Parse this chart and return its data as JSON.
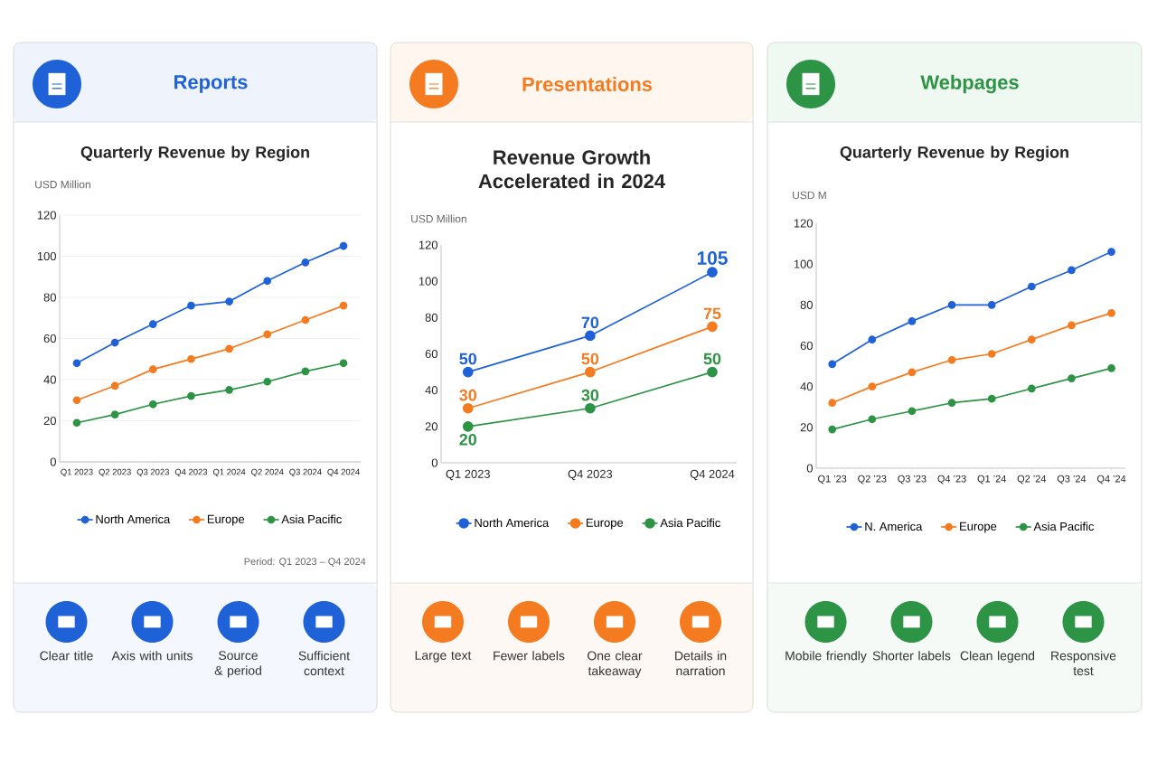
{
  "chart_data": [
    {
      "type": "line",
      "title": "Reports",
      "subtitle": "Quarterly Revenue by Region",
      "ylabel": "USD Million",
      "categories": [
        "Q1 2023",
        "Q2 2023",
        "Q3 2023",
        "Q4 2023",
        "Q1 2024",
        "Q2 2024",
        "Q3 2024",
        "Q4 2024"
      ],
      "series": [
        {
          "name": "North America",
          "color": "#1f62d8",
          "values": [
            48,
            58,
            67,
            76,
            78,
            88,
            97,
            105
          ]
        },
        {
          "name": "Europe",
          "color": "#f47b20",
          "values": [
            30,
            37,
            45,
            50,
            55,
            62,
            69,
            76
          ]
        },
        {
          "name": "Asia Pacific",
          "color": "#2e9445",
          "values": [
            19,
            23,
            28,
            32,
            35,
            39,
            44,
            48
          ]
        }
      ],
      "ylim": [
        0,
        120
      ],
      "yticks": [
        0,
        20,
        40,
        60,
        80,
        100,
        120
      ],
      "grid": "y",
      "legend": "bottom",
      "marker": "circle",
      "line_style": "solid",
      "annotations": [
        "Period: Q1 2023 – Q4 2024",
        "Clear title",
        "Axis with units",
        "Source & period",
        "Sufficient context"
      ]
    },
    {
      "type": "line",
      "title": "Presentations",
      "subtitle": "Revenue Growth Accelerated in 2024",
      "ylabel": "USD Million",
      "categories": [
        "Q1 2023",
        "Q4 2023",
        "Q4 2024"
      ],
      "series": [
        {
          "name": "North America",
          "color": "#1f62d8",
          "values": [
            50,
            70,
            105
          ]
        },
        {
          "name": "Europe",
          "color": "#f47b20",
          "values": [
            30,
            50,
            75
          ]
        },
        {
          "name": "Asia Pacific",
          "color": "#2e9445",
          "values": [
            20,
            30,
            50
          ]
        }
      ],
      "ylim": [
        0,
        120
      ],
      "yticks": [
        0,
        20,
        40,
        60,
        80,
        100,
        120
      ],
      "legend": "bottom",
      "marker": "circle",
      "line_style": "solid",
      "data_labels": true,
      "annotations": [
        "Large text",
        "Fewer labels",
        "One clear takeaway",
        "Details in narration"
      ]
    },
    {
      "type": "line",
      "title": "Webpages",
      "subtitle": "Quarterly Revenue by Region",
      "ylabel": "USD M",
      "categories": [
        "Q1 ’23",
        "Q2 ’23",
        "Q3 ’23",
        "Q4 ’23",
        "Q1 ’24",
        "Q2 ’24",
        "Q3 ’24",
        "Q4 ’24"
      ],
      "series": [
        {
          "name": "N. America",
          "color": "#1f62d8",
          "values": [
            51,
            63,
            72,
            80,
            80,
            89,
            97,
            106
          ]
        },
        {
          "name": "Europe",
          "color": "#f47b20",
          "values": [
            32,
            40,
            47,
            53,
            56,
            63,
            70,
            76
          ]
        },
        {
          "name": "Asia Pacific",
          "color": "#2e9445",
          "values": [
            19,
            24,
            28,
            32,
            34,
            39,
            44,
            49
          ]
        }
      ],
      "ylim": [
        0,
        120
      ],
      "yticks": [
        0,
        20,
        40,
        60,
        80,
        100,
        120
      ],
      "legend": "bottom",
      "marker": "circle",
      "line_style": "solid",
      "annotations": [
        "Mobile friendly",
        "Shorter labels",
        "Clean legend",
        "Responsive test"
      ]
    }
  ]
}
